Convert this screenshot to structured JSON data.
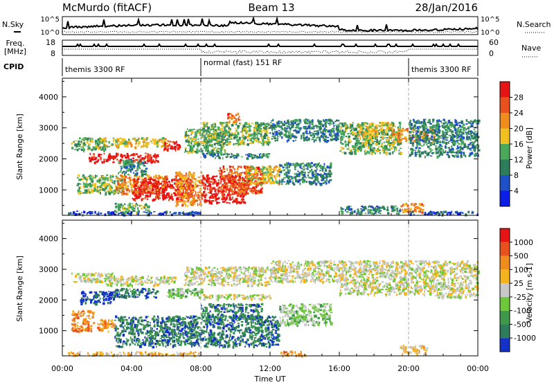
{
  "header": {
    "station": "McMurdo (fitACF)",
    "beam": "Beam 13",
    "date": "28/Jan/2016"
  },
  "top_panels": {
    "nsky_label": "N.Sky",
    "nsearch_label": "N.Search",
    "noise_left_ticks": [
      "10^5",
      "10^0"
    ],
    "noise_right_ticks": [
      "10^5",
      "10^0"
    ],
    "freq_label_1": "Freq.",
    "freq_label_2": "[MHz]",
    "freq_ticks": [
      "18",
      "8"
    ],
    "nave_ticks": [
      "60",
      "0"
    ],
    "nave_label": "Nave",
    "cpid_label": "CPID",
    "cpid_segments": [
      {
        "label": "themis 3300 RF",
        "start_hour": 0,
        "end_hour": 8
      },
      {
        "label": "normal (fast) 151 RF",
        "start_hour": 8,
        "end_hour": 20
      },
      {
        "label": "themis 3300 RF",
        "start_hour": 20,
        "end_hour": 24
      }
    ]
  },
  "chart_data": [
    {
      "type": "heatmap",
      "name": "power",
      "ylabel": "Slant Range [km]",
      "y_ticks": [
        1000,
        2000,
        3000,
        4000
      ],
      "ylim": [
        180,
        4600
      ],
      "xlim": [
        0,
        24
      ],
      "colorbar": {
        "label": "Power [dB]",
        "tick_labels": [
          "4",
          "8",
          "12",
          "16",
          "20",
          "24",
          "28"
        ],
        "colors": [
          "#0a1ee6",
          "#1e50c8",
          "#2e7d5a",
          "#4aa85a",
          "#f0c020",
          "#f08c1e",
          "#e8501e",
          "#e61414"
        ]
      },
      "regions": [
        {
          "t0": 0.3,
          "t1": 8.0,
          "r0": 220,
          "r1": 330,
          "level": 1
        },
        {
          "t0": 0.5,
          "t1": 2.5,
          "r0": 2300,
          "r1": 2700,
          "level": 3
        },
        {
          "t0": 1.5,
          "t1": 5.5,
          "r0": 1900,
          "r1": 2200,
          "level": 7
        },
        {
          "t0": 2.0,
          "t1": 6.0,
          "r0": 2400,
          "r1": 2700,
          "level": 4
        },
        {
          "t0": 5.8,
          "t1": 6.8,
          "r0": 2300,
          "r1": 2600,
          "level": 7
        },
        {
          "t0": 0.8,
          "t1": 3.5,
          "r0": 900,
          "r1": 1500,
          "level": 3
        },
        {
          "t0": 3.0,
          "t1": 6.0,
          "r0": 900,
          "r1": 1500,
          "level": 5
        },
        {
          "t0": 4.0,
          "t1": 7.5,
          "r0": 700,
          "r1": 1400,
          "level": 7
        },
        {
          "t0": 6.5,
          "t1": 8.0,
          "r0": 500,
          "r1": 1600,
          "level": 5
        },
        {
          "t0": 8.0,
          "t1": 10.5,
          "r0": 600,
          "r1": 1500,
          "level": 7
        },
        {
          "t0": 9.0,
          "t1": 11.5,
          "r0": 900,
          "r1": 1800,
          "level": 6
        },
        {
          "t0": 10.5,
          "t1": 12.5,
          "r0": 1200,
          "r1": 1800,
          "level": 4
        },
        {
          "t0": 3.0,
          "t1": 5.0,
          "r0": 300,
          "r1": 600,
          "level": 3
        },
        {
          "t0": 3.2,
          "t1": 4.8,
          "r0": 1500,
          "r1": 2000,
          "level": 2
        },
        {
          "t0": 7.0,
          "t1": 9.5,
          "r0": 2200,
          "r1": 3000,
          "level": 3
        },
        {
          "t0": 8.0,
          "t1": 12.0,
          "r0": 2500,
          "r1": 3200,
          "level": 3
        },
        {
          "t0": 8.0,
          "t1": 12.0,
          "r0": 2050,
          "r1": 2200,
          "level": 2
        },
        {
          "t0": 9.5,
          "t1": 10.2,
          "r0": 3200,
          "r1": 3500,
          "level": 6
        },
        {
          "t0": 12.0,
          "t1": 16.0,
          "r0": 2600,
          "r1": 3300,
          "level": 2
        },
        {
          "t0": 12.5,
          "t1": 15.5,
          "r0": 1200,
          "r1": 1900,
          "level": 2
        },
        {
          "t0": 16.0,
          "t1": 19.5,
          "r0": 2200,
          "r1": 3200,
          "level": 3
        },
        {
          "t0": 17.0,
          "t1": 19.0,
          "r0": 2700,
          "r1": 3200,
          "level": 4
        },
        {
          "t0": 19.0,
          "t1": 21.5,
          "r0": 2600,
          "r1": 3000,
          "level": 5
        },
        {
          "t0": 20.0,
          "t1": 24.0,
          "r0": 2100,
          "r1": 3300,
          "level": 2
        },
        {
          "t0": 19.5,
          "t1": 20.8,
          "r0": 300,
          "r1": 600,
          "level": 5
        },
        {
          "t0": 16.0,
          "t1": 19.5,
          "r0": 250,
          "r1": 500,
          "level": 2
        },
        {
          "t0": 20.0,
          "t1": 24.0,
          "r0": 220,
          "r1": 330,
          "level": 1
        }
      ]
    },
    {
      "type": "heatmap",
      "name": "velocity",
      "ylabel": "Slant Range [km]",
      "xlabel": "Time UT",
      "x_ticks": [
        "00:00",
        "04:00",
        "08:00",
        "12:00",
        "16:00",
        "20:00",
        "00:00"
      ],
      "y_ticks": [
        1000,
        2000,
        3000,
        4000
      ],
      "ylim": [
        180,
        4600
      ],
      "xlim": [
        0,
        24
      ],
      "colorbar": {
        "label": "Velocity [m s-1]",
        "tick_labels": [
          "1000",
          "500",
          "100",
          "25",
          "-25",
          "-100",
          "-500",
          "-1000"
        ],
        "colors": [
          "#1432c8",
          "#2e7d5a",
          "#3e9a4a",
          "#6fc83a",
          "#c8c8c8",
          "#f5b41e",
          "#f08c1e",
          "#e8501e",
          "#e61414"
        ]
      },
      "regions": [
        {
          "t0": 0.3,
          "t1": 8.0,
          "r0": 220,
          "r1": 330,
          "level": 5
        },
        {
          "t0": 0.5,
          "t1": 3.0,
          "r0": 2600,
          "r1": 2900,
          "level": 4
        },
        {
          "t0": 1.0,
          "t1": 3.0,
          "r0": 1900,
          "r1": 2300,
          "level": 0
        },
        {
          "t0": 3.0,
          "t1": 5.5,
          "r0": 2100,
          "r1": 2400,
          "level": 1
        },
        {
          "t0": 2.5,
          "t1": 6.5,
          "r0": 2500,
          "r1": 2800,
          "level": 4
        },
        {
          "t0": 0.5,
          "t1": 1.8,
          "r0": 1000,
          "r1": 1700,
          "level": 6
        },
        {
          "t0": 2.0,
          "t1": 3.0,
          "r0": 1000,
          "r1": 1400,
          "level": 6
        },
        {
          "t0": 3.0,
          "t1": 12.5,
          "r0": 500,
          "r1": 1500,
          "level": 1
        },
        {
          "t0": 8.0,
          "t1": 11.5,
          "r0": 1400,
          "r1": 1900,
          "level": 1
        },
        {
          "t0": 6.0,
          "t1": 8.0,
          "r0": 2100,
          "r1": 2400,
          "level": 3
        },
        {
          "t0": 7.0,
          "t1": 12.0,
          "r0": 2500,
          "r1": 3100,
          "level": 4
        },
        {
          "t0": 8.0,
          "t1": 12.0,
          "r0": 2050,
          "r1": 2200,
          "level": 4
        },
        {
          "t0": 12.0,
          "t1": 16.0,
          "r0": 2600,
          "r1": 3300,
          "level": 4
        },
        {
          "t0": 12.5,
          "t1": 15.5,
          "r0": 1200,
          "r1": 1900,
          "level": 3
        },
        {
          "t0": 16.0,
          "t1": 21.5,
          "r0": 2200,
          "r1": 3300,
          "level": 4
        },
        {
          "t0": 21.5,
          "t1": 24.0,
          "r0": 2100,
          "r1": 3300,
          "level": 4
        },
        {
          "t0": 19.5,
          "t1": 21.0,
          "r0": 250,
          "r1": 550,
          "level": 5
        },
        {
          "t0": 12.5,
          "t1": 14.0,
          "r0": 200,
          "r1": 350,
          "level": 6
        }
      ]
    }
  ]
}
